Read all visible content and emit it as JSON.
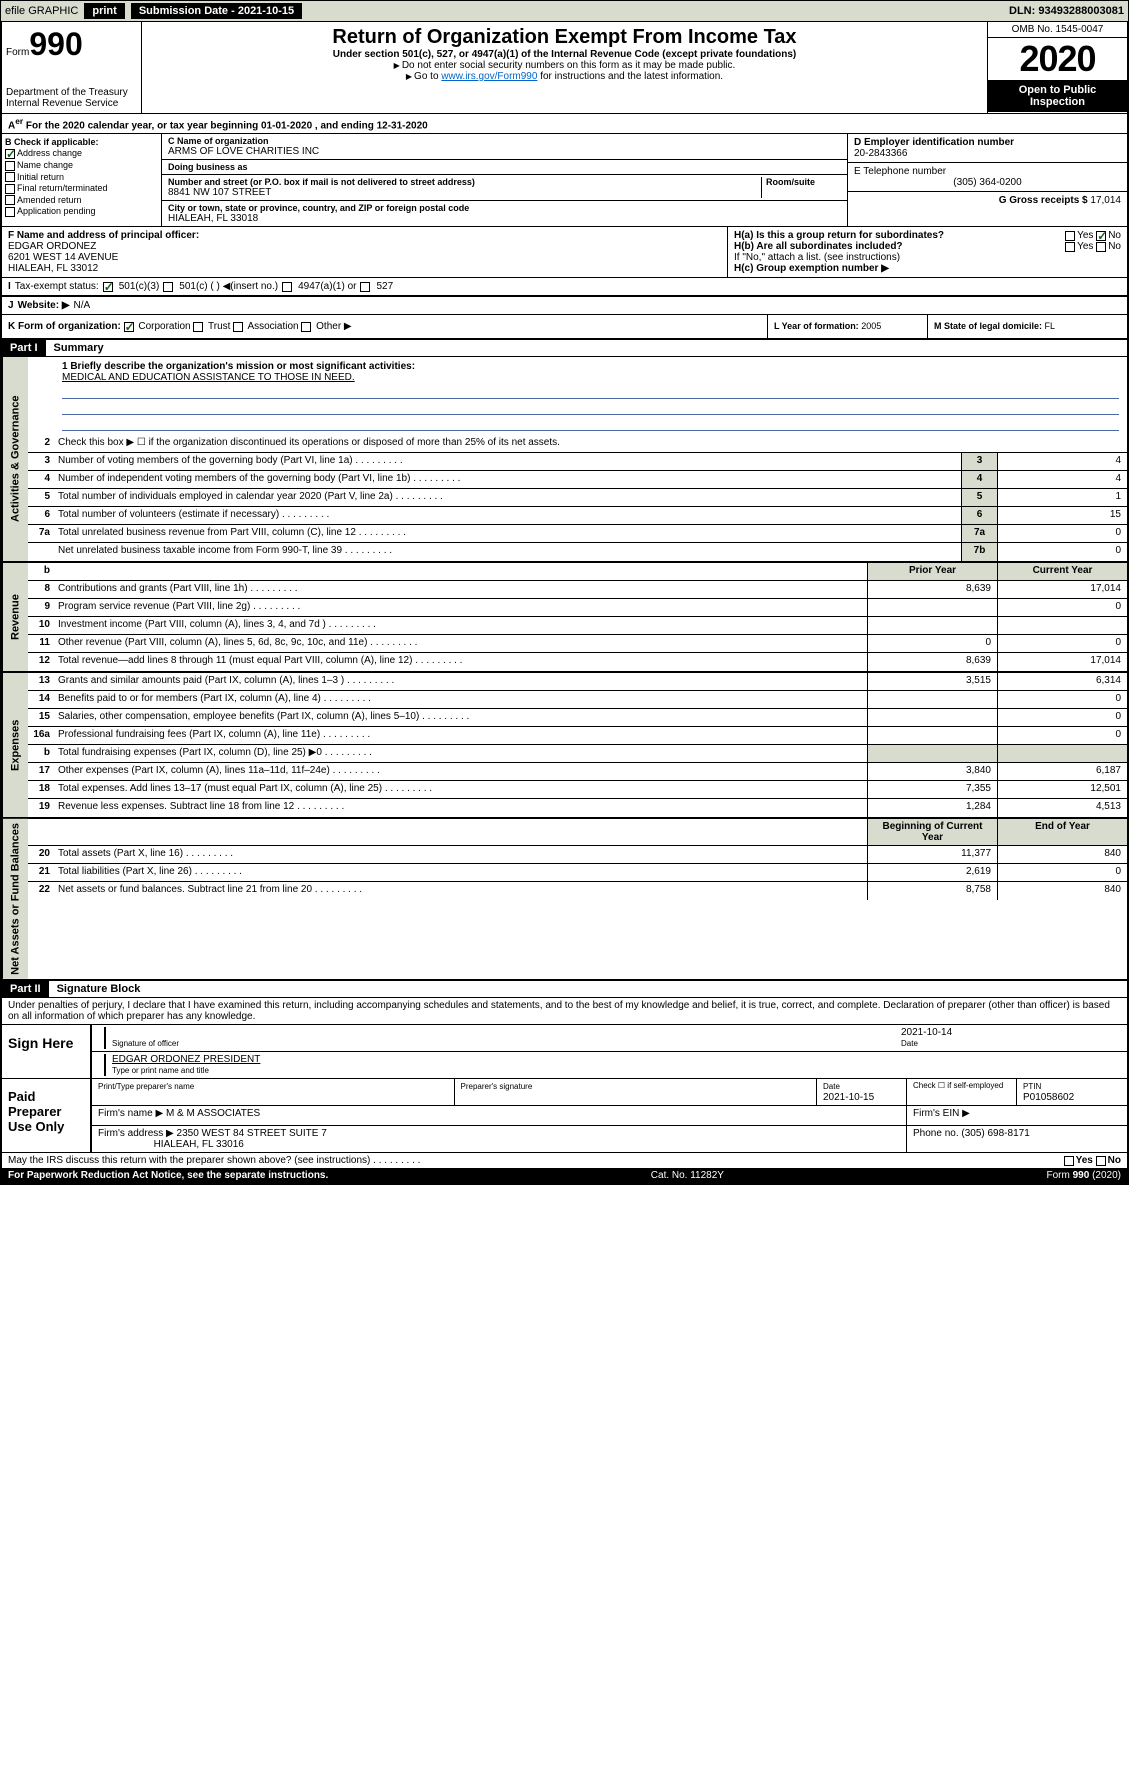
{
  "topbar": {
    "efile": "efile GRAPHIC",
    "print": "print",
    "sub_label": "Submission Date - 2021-10-15",
    "dln": "DLN: 93493288003081"
  },
  "header": {
    "form_word": "Form",
    "form_num": "990",
    "dept": "Department of the Treasury\nInternal Revenue Service",
    "title": "Return of Organization Exempt From Income Tax",
    "sub": "Under section 501(c), 527, or 4947(a)(1) of the Internal Revenue Code (except private foundations)",
    "note1": "Do not enter social security numbers on this form as it may be made public.",
    "note2_a": "Go to ",
    "note2_link": "www.irs.gov/Form990",
    "note2_b": " for instructions and the latest information.",
    "omb": "OMB No. 1545-0047",
    "year": "2020",
    "open": "Open to Public Inspection"
  },
  "period": {
    "text_a": "For the 2020 calendar year, or tax year beginning ",
    "b": "01-01-2020",
    "text_c": " , and ending ",
    "e": "12-31-2020"
  },
  "boxB": {
    "hdr": "B Check if applicable:",
    "items": [
      {
        "label": "Address change",
        "checked": true
      },
      {
        "label": "Name change",
        "checked": false
      },
      {
        "label": "Initial return",
        "checked": false
      },
      {
        "label": "Final return/terminated",
        "checked": false
      },
      {
        "label": "Amended return",
        "checked": false
      },
      {
        "label": "Application pending",
        "checked": false
      }
    ]
  },
  "boxC": {
    "name_lbl": "C Name of organization",
    "name": "ARMS OF LOVE CHARITIES INC",
    "dba_lbl": "Doing business as",
    "street_lbl": "Number and street (or P.O. box if mail is not delivered to street address)",
    "room_lbl": "Room/suite",
    "street": "8841 NW 107 STREET",
    "city_lbl": "City or town, state or province, country, and ZIP or foreign postal code",
    "city": "HIALEAH, FL  33018"
  },
  "boxD": {
    "ein_lbl": "D Employer identification number",
    "ein": "20-2843366",
    "tel_lbl": "E Telephone number",
    "tel": "(305) 364-0200",
    "gross_lbl": "G Gross receipts $ ",
    "gross": "17,014"
  },
  "rowF": {
    "f_lbl": "F  Name and address of principal officer:",
    "f_name": "EDGAR ORDONEZ",
    "f_addr1": "6201 WEST 14 AVENUE",
    "f_addr2": "HIALEAH, FL  33012",
    "ha": "H(a)  Is this a group return for subordinates?",
    "hb": "H(b)  Are all subordinates included?",
    "hifno": "If \"No,\" attach a list. (see instructions)",
    "hc": "H(c)  Group exemption number ▶",
    "yes": "Yes",
    "no": "No"
  },
  "rowI": {
    "label": "Tax-exempt status:",
    "o1": "501(c)(3)",
    "o2": "501(c) (  ) ◀(insert no.)",
    "o3": "4947(a)(1) or",
    "o4": "527"
  },
  "rowJ": {
    "lbl": "Website: ▶",
    "val": "N/A"
  },
  "rowK": {
    "k": "K Form of organization:",
    "corp": "Corporation",
    "trust": "Trust",
    "assoc": "Association",
    "other": "Other ▶",
    "l_lbl": "L Year of formation: ",
    "l_val": "2005",
    "m_lbl": "M State of legal domicile: ",
    "m_val": "FL"
  },
  "part1": {
    "hdr": "Part I",
    "title": "Summary",
    "line1_lbl": "1  Briefly describe the organization's mission or most significant activities:",
    "line1_val": "MEDICAL AND EDUCATION ASSISTANCE TO THOSE IN NEED.",
    "line2": "Check this box ▶ ☐  if the organization discontinued its operations or disposed of more than 25% of its net assets."
  },
  "sections": {
    "gov": "Activities & Governance",
    "rev": "Revenue",
    "exp": "Expenses",
    "net": "Net Assets or Fund Balances"
  },
  "gov_lines": [
    {
      "n": "3",
      "d": "Number of voting members of the governing body (Part VI, line 1a)",
      "bn": "3",
      "v": "4"
    },
    {
      "n": "4",
      "d": "Number of independent voting members of the governing body (Part VI, line 1b)",
      "bn": "4",
      "v": "4"
    },
    {
      "n": "5",
      "d": "Total number of individuals employed in calendar year 2020 (Part V, line 2a)",
      "bn": "5",
      "v": "1"
    },
    {
      "n": "6",
      "d": "Total number of volunteers (estimate if necessary)",
      "bn": "6",
      "v": "15"
    },
    {
      "n": "7a",
      "d": "Total unrelated business revenue from Part VIII, column (C), line 12",
      "bn": "7a",
      "v": "0"
    },
    {
      "n": "",
      "d": "Net unrelated business taxable income from Form 990-T, line 39",
      "bn": "7b",
      "v": "0"
    }
  ],
  "col_hdr": {
    "b": "b",
    "prior": "Prior Year",
    "current": "Current Year",
    "beg": "Beginning of Current Year",
    "end": "End of Year"
  },
  "rev_lines": [
    {
      "n": "8",
      "d": "Contributions and grants (Part VIII, line 1h)",
      "p": "8,639",
      "c": "17,014"
    },
    {
      "n": "9",
      "d": "Program service revenue (Part VIII, line 2g)",
      "p": "",
      "c": "0"
    },
    {
      "n": "10",
      "d": "Investment income (Part VIII, column (A), lines 3, 4, and 7d )",
      "p": "",
      "c": ""
    },
    {
      "n": "11",
      "d": "Other revenue (Part VIII, column (A), lines 5, 6d, 8c, 9c, 10c, and 11e)",
      "p": "0",
      "c": "0"
    },
    {
      "n": "12",
      "d": "Total revenue—add lines 8 through 11 (must equal Part VIII, column (A), line 12)",
      "p": "8,639",
      "c": "17,014"
    }
  ],
  "exp_lines": [
    {
      "n": "13",
      "d": "Grants and similar amounts paid (Part IX, column (A), lines 1–3 )",
      "p": "3,515",
      "c": "6,314"
    },
    {
      "n": "14",
      "d": "Benefits paid to or for members (Part IX, column (A), line 4)",
      "p": "",
      "c": "0"
    },
    {
      "n": "15",
      "d": "Salaries, other compensation, employee benefits (Part IX, column (A), lines 5–10)",
      "p": "",
      "c": "0"
    },
    {
      "n": "16a",
      "d": "Professional fundraising fees (Part IX, column (A), line 11e)",
      "p": "",
      "c": "0"
    },
    {
      "n": "b",
      "d": "Total fundraising expenses (Part IX, column (D), line 25) ▶0",
      "p": "shade",
      "c": "shade"
    },
    {
      "n": "17",
      "d": "Other expenses (Part IX, column (A), lines 11a–11d, 11f–24e)",
      "p": "3,840",
      "c": "6,187"
    },
    {
      "n": "18",
      "d": "Total expenses. Add lines 13–17 (must equal Part IX, column (A), line 25)",
      "p": "7,355",
      "c": "12,501"
    },
    {
      "n": "19",
      "d": "Revenue less expenses. Subtract line 18 from line 12",
      "p": "1,284",
      "c": "4,513"
    }
  ],
  "net_lines": [
    {
      "n": "20",
      "d": "Total assets (Part X, line 16)",
      "p": "11,377",
      "c": "840"
    },
    {
      "n": "21",
      "d": "Total liabilities (Part X, line 26)",
      "p": "2,619",
      "c": "0"
    },
    {
      "n": "22",
      "d": "Net assets or fund balances. Subtract line 21 from line 20",
      "p": "8,758",
      "c": "840"
    }
  ],
  "part2": {
    "hdr": "Part II",
    "title": "Signature Block",
    "intro": "Under penalties of perjury, I declare that I have examined this return, including accompanying schedules and statements, and to the best of my knowledge and belief, it is true, correct, and complete. Declaration of preparer (other than officer) is based on all information of which preparer has any knowledge."
  },
  "sign": {
    "here": "Sign Here",
    "sig_officer": "Signature of officer",
    "date": "2021-10-14",
    "date_lbl": "Date",
    "name": "EDGAR ORDONEZ  PRESIDENT",
    "name_lbl": "Type or print name and title"
  },
  "paid": {
    "label": "Paid Preparer Use Only",
    "print_lbl": "Print/Type preparer's name",
    "sig_lbl": "Preparer's signature",
    "date_lbl": "Date",
    "date": "2021-10-15",
    "check_lbl": "Check ☐ if self-employed",
    "ptin_lbl": "PTIN",
    "ptin": "P01058602",
    "firm_name_lbl": "Firm's name   ▶",
    "firm_name": "M & M ASSOCIATES",
    "firm_ein_lbl": "Firm's EIN ▶",
    "firm_addr_lbl": "Firm's address ▶",
    "firm_addr": "2350 WEST 84 STREET SUITE 7",
    "firm_city": "HIALEAH, FL  33016",
    "phone_lbl": "Phone no. ",
    "phone": "(305) 698-8171"
  },
  "footer": {
    "discuss": "May the IRS discuss this return with the preparer shown above? (see instructions)",
    "yes": "Yes",
    "no": "No",
    "pra": "For Paperwork Reduction Act Notice, see the separate instructions.",
    "cat": "Cat. No. 11282Y",
    "form": "Form 990 (2020)"
  },
  "colors": {
    "bg_shade": "#d8dccf",
    "link": "#0066cc",
    "check_green": "#1a5c1a"
  }
}
